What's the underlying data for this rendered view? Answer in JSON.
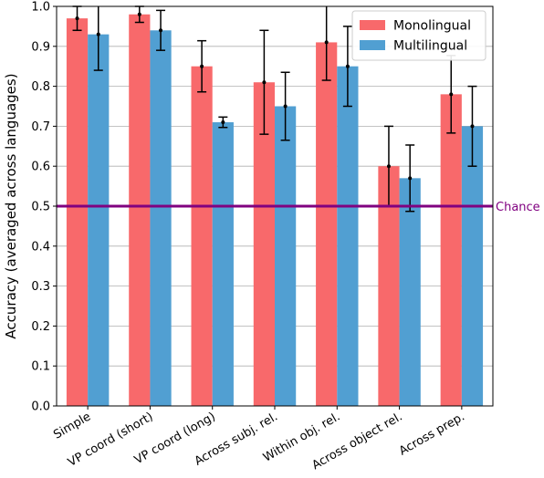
{
  "chart_data": {
    "type": "bar",
    "title": "",
    "xlabel": "",
    "ylabel": "Accuracy (averaged across languages)",
    "ylim": [
      0,
      1.0
    ],
    "yticks": [
      "0.0",
      "0.1",
      "0.2",
      "0.3",
      "0.4",
      "0.5",
      "0.6",
      "0.7",
      "0.8",
      "0.9",
      "1.0"
    ],
    "grid": "horizontal",
    "legend_position": "top-right",
    "categories": [
      "Simple",
      "VP coord (short)",
      "VP coord (long)",
      "Across subj. rel.",
      "Within obj. rel.",
      "Across object rel.",
      "Across prep."
    ],
    "series": [
      {
        "name": "Monolingual",
        "color": "#f8696b",
        "values": [
          0.97,
          0.98,
          0.85,
          0.81,
          0.91,
          0.6,
          0.78
        ],
        "errors": [
          0.03,
          0.02,
          0.064,
          0.13,
          0.095,
          0.1,
          0.097
        ]
      },
      {
        "name": "Multilingual",
        "color": "#519fd2",
        "values": [
          0.93,
          0.94,
          0.71,
          0.75,
          0.85,
          0.57,
          0.7
        ],
        "errors": [
          0.09,
          0.05,
          0.013,
          0.085,
          0.1,
          0.083,
          0.1
        ]
      }
    ],
    "reference_line": {
      "value": 0.5,
      "label": "Chance",
      "color": "#800080"
    }
  }
}
